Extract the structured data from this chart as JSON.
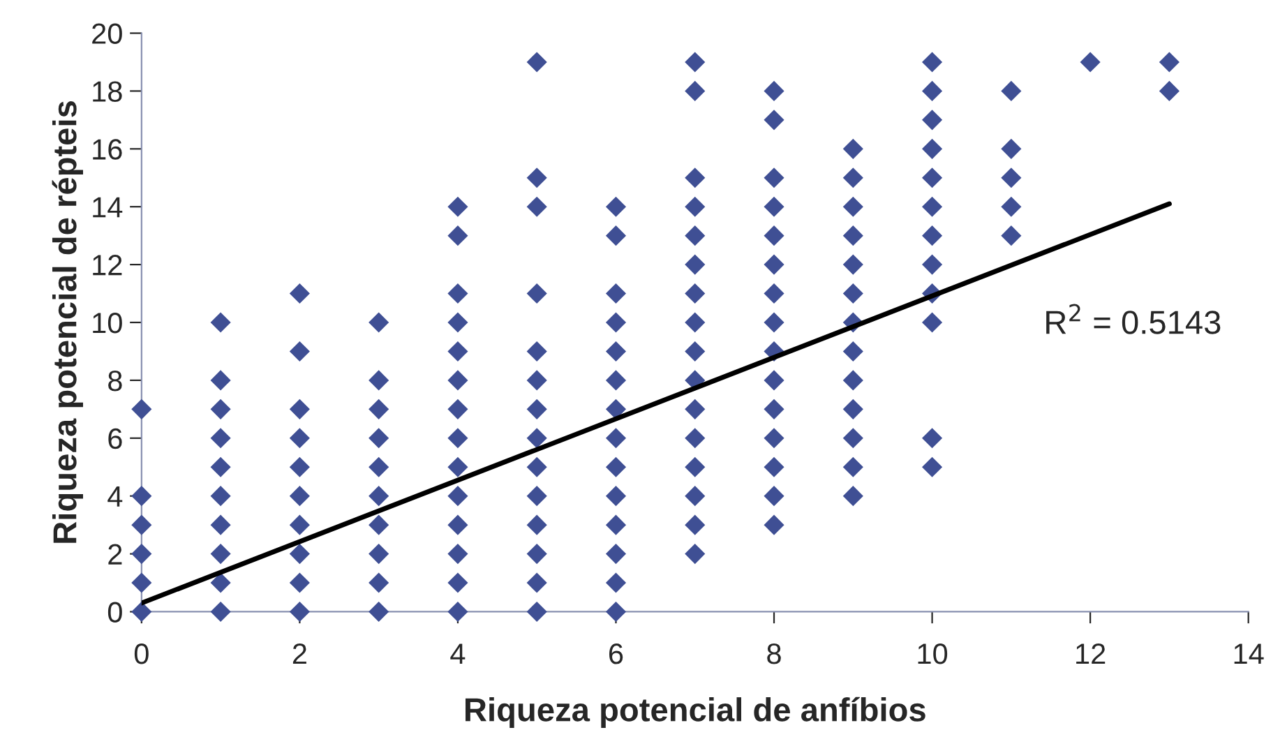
{
  "chart_data": {
    "type": "scatter",
    "xlabel": "Riqueza potencial de anfíbios",
    "ylabel": "Riqueza potencial de répteis",
    "xlim": [
      0,
      14
    ],
    "xticks": [
      0,
      2,
      4,
      6,
      8,
      10,
      12,
      14
    ],
    "ylim": [
      0,
      20
    ],
    "yticks": [
      0,
      2,
      4,
      6,
      8,
      10,
      12,
      14,
      16,
      18,
      20
    ],
    "grid": false,
    "legend": false,
    "annotations": [
      "R$^{2}$ = 0.5143"
    ],
    "series": [
      {
        "marker": "diamond",
        "color": "#3f4f94",
        "x": [
          0,
          0,
          0,
          0,
          0,
          0,
          1,
          1,
          1,
          1,
          1,
          1,
          1,
          1,
          1,
          1,
          2,
          2,
          2,
          2,
          2,
          2,
          2,
          2,
          2,
          2,
          3,
          3,
          3,
          3,
          3,
          3,
          3,
          3,
          3,
          3,
          4,
          4,
          4,
          4,
          4,
          4,
          4,
          4,
          4,
          4,
          4,
          4,
          4,
          4,
          5,
          5,
          5,
          5,
          5,
          5,
          5,
          5,
          5,
          5,
          5,
          5,
          5,
          5,
          6,
          6,
          6,
          6,
          6,
          6,
          6,
          6,
          6,
          6,
          6,
          6,
          6,
          6,
          7,
          7,
          7,
          7,
          7,
          7,
          7,
          7,
          7,
          7,
          7,
          7,
          7,
          7,
          7,
          7,
          8,
          8,
          8,
          8,
          8,
          8,
          8,
          8,
          8,
          8,
          8,
          8,
          8,
          8,
          8,
          9,
          9,
          9,
          9,
          9,
          9,
          9,
          9,
          9,
          9,
          9,
          9,
          9,
          10,
          10,
          10,
          10,
          10,
          10,
          10,
          10,
          10,
          10,
          10,
          10,
          11,
          11,
          11,
          11,
          11,
          12,
          13,
          13
        ],
        "values": [
          0,
          1,
          2,
          3,
          4,
          7,
          0,
          1,
          2,
          3,
          4,
          5,
          6,
          7,
          8,
          10,
          0,
          1,
          2,
          3,
          4,
          5,
          6,
          7,
          9,
          11,
          0,
          1,
          2,
          3,
          4,
          5,
          6,
          7,
          8,
          10,
          0,
          1,
          2,
          3,
          4,
          5,
          6,
          7,
          8,
          9,
          10,
          11,
          13,
          14,
          0,
          1,
          2,
          3,
          4,
          5,
          6,
          7,
          8,
          9,
          11,
          14,
          15,
          19,
          0,
          1,
          2,
          3,
          4,
          5,
          6,
          7,
          8,
          9,
          10,
          11,
          13,
          14,
          2,
          3,
          4,
          5,
          6,
          7,
          8,
          9,
          10,
          11,
          12,
          13,
          14,
          15,
          18,
          19,
          3,
          4,
          5,
          6,
          7,
          8,
          9,
          10,
          11,
          12,
          13,
          14,
          15,
          17,
          18,
          4,
          5,
          6,
          7,
          8,
          9,
          10,
          11,
          12,
          13,
          14,
          15,
          16,
          5,
          6,
          10,
          11,
          12,
          13,
          14,
          15,
          16,
          17,
          18,
          19,
          13,
          14,
          15,
          16,
          18,
          19,
          18,
          19
        ]
      },
      {
        "type": "line",
        "color": "#000000",
        "line_style": "solid",
        "marker": "none",
        "x": [
          0,
          13
        ],
        "values": [
          0.3,
          14.1
        ]
      }
    ]
  }
}
